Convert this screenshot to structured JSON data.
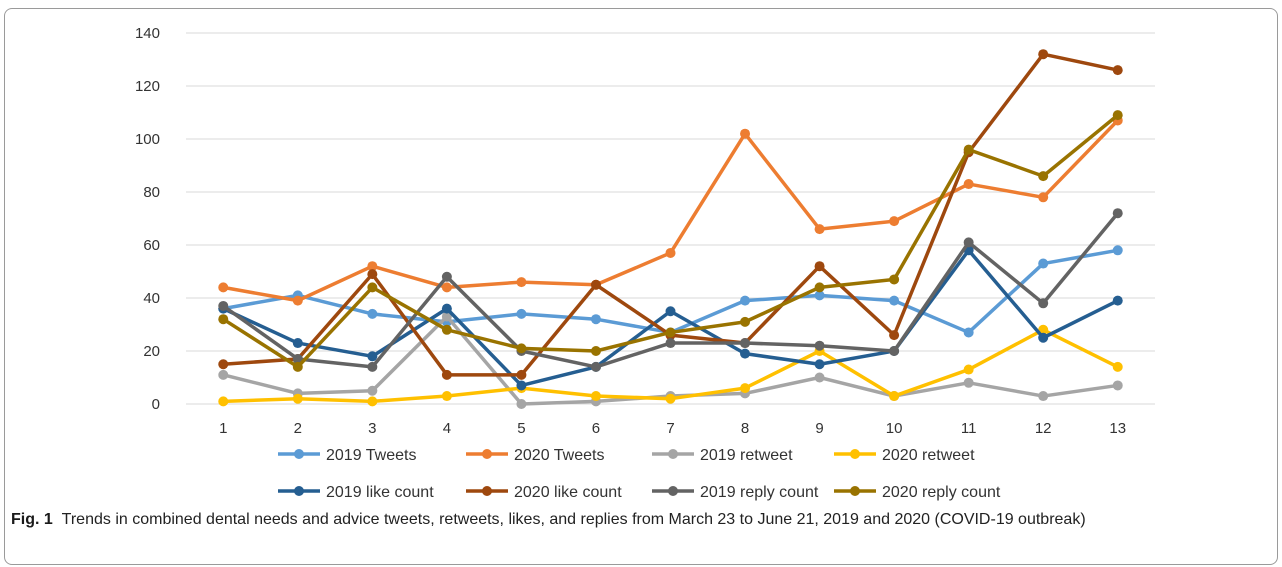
{
  "figure": {
    "caption_label": "Fig. 1",
    "caption_text": "Trends in combined dental needs and advice tweets, retweets, likes, and replies from March 23 to June 21, 2019 and 2020 (COVID-19 outbreak)"
  },
  "chart_data": {
    "type": "line",
    "x": [
      "1",
      "2",
      "3",
      "4",
      "5",
      "6",
      "7",
      "8",
      "9",
      "10",
      "11",
      "12",
      "13"
    ],
    "ylim": [
      0,
      140
    ],
    "yticks": [
      0,
      20,
      40,
      60,
      80,
      100,
      120,
      140
    ],
    "grid": true,
    "legend_position": "bottom",
    "series": [
      {
        "name": "2019 Tweets",
        "color": "#5b9bd5",
        "values": [
          36,
          41,
          34,
          31,
          34,
          32,
          27,
          39,
          41,
          39,
          27,
          53,
          58
        ]
      },
      {
        "name": "2020 Tweets",
        "color": "#ed7d31",
        "values": [
          44,
          39,
          52,
          44,
          46,
          45,
          57,
          102,
          66,
          69,
          83,
          78,
          107
        ]
      },
      {
        "name": "2019 retweet",
        "color": "#a5a5a5",
        "values": [
          11,
          4,
          5,
          33,
          0,
          1,
          3,
          4,
          10,
          3,
          8,
          3,
          7
        ]
      },
      {
        "name": "2020 retweet",
        "color": "#ffc000",
        "values": [
          1,
          2,
          1,
          3,
          6,
          3,
          2,
          6,
          20,
          3,
          13,
          28,
          14
        ]
      },
      {
        "name": "2019 like count",
        "color": "#255e91",
        "values": [
          36,
          23,
          18,
          36,
          7,
          14,
          35,
          19,
          15,
          20,
          58,
          25,
          39
        ]
      },
      {
        "name": "2020 like count",
        "color": "#9e480e",
        "values": [
          15,
          17,
          49,
          11,
          11,
          45,
          26,
          23,
          52,
          26,
          95,
          132,
          126
        ]
      },
      {
        "name": "2019 reply count",
        "color": "#636363",
        "values": [
          37,
          17,
          14,
          48,
          20,
          14,
          23,
          23,
          22,
          20,
          61,
          38,
          72
        ]
      },
      {
        "name": "2020 reply count",
        "color": "#997300",
        "values": [
          32,
          14,
          44,
          28,
          21,
          20,
          27,
          31,
          44,
          47,
          96,
          86,
          109
        ]
      }
    ]
  }
}
